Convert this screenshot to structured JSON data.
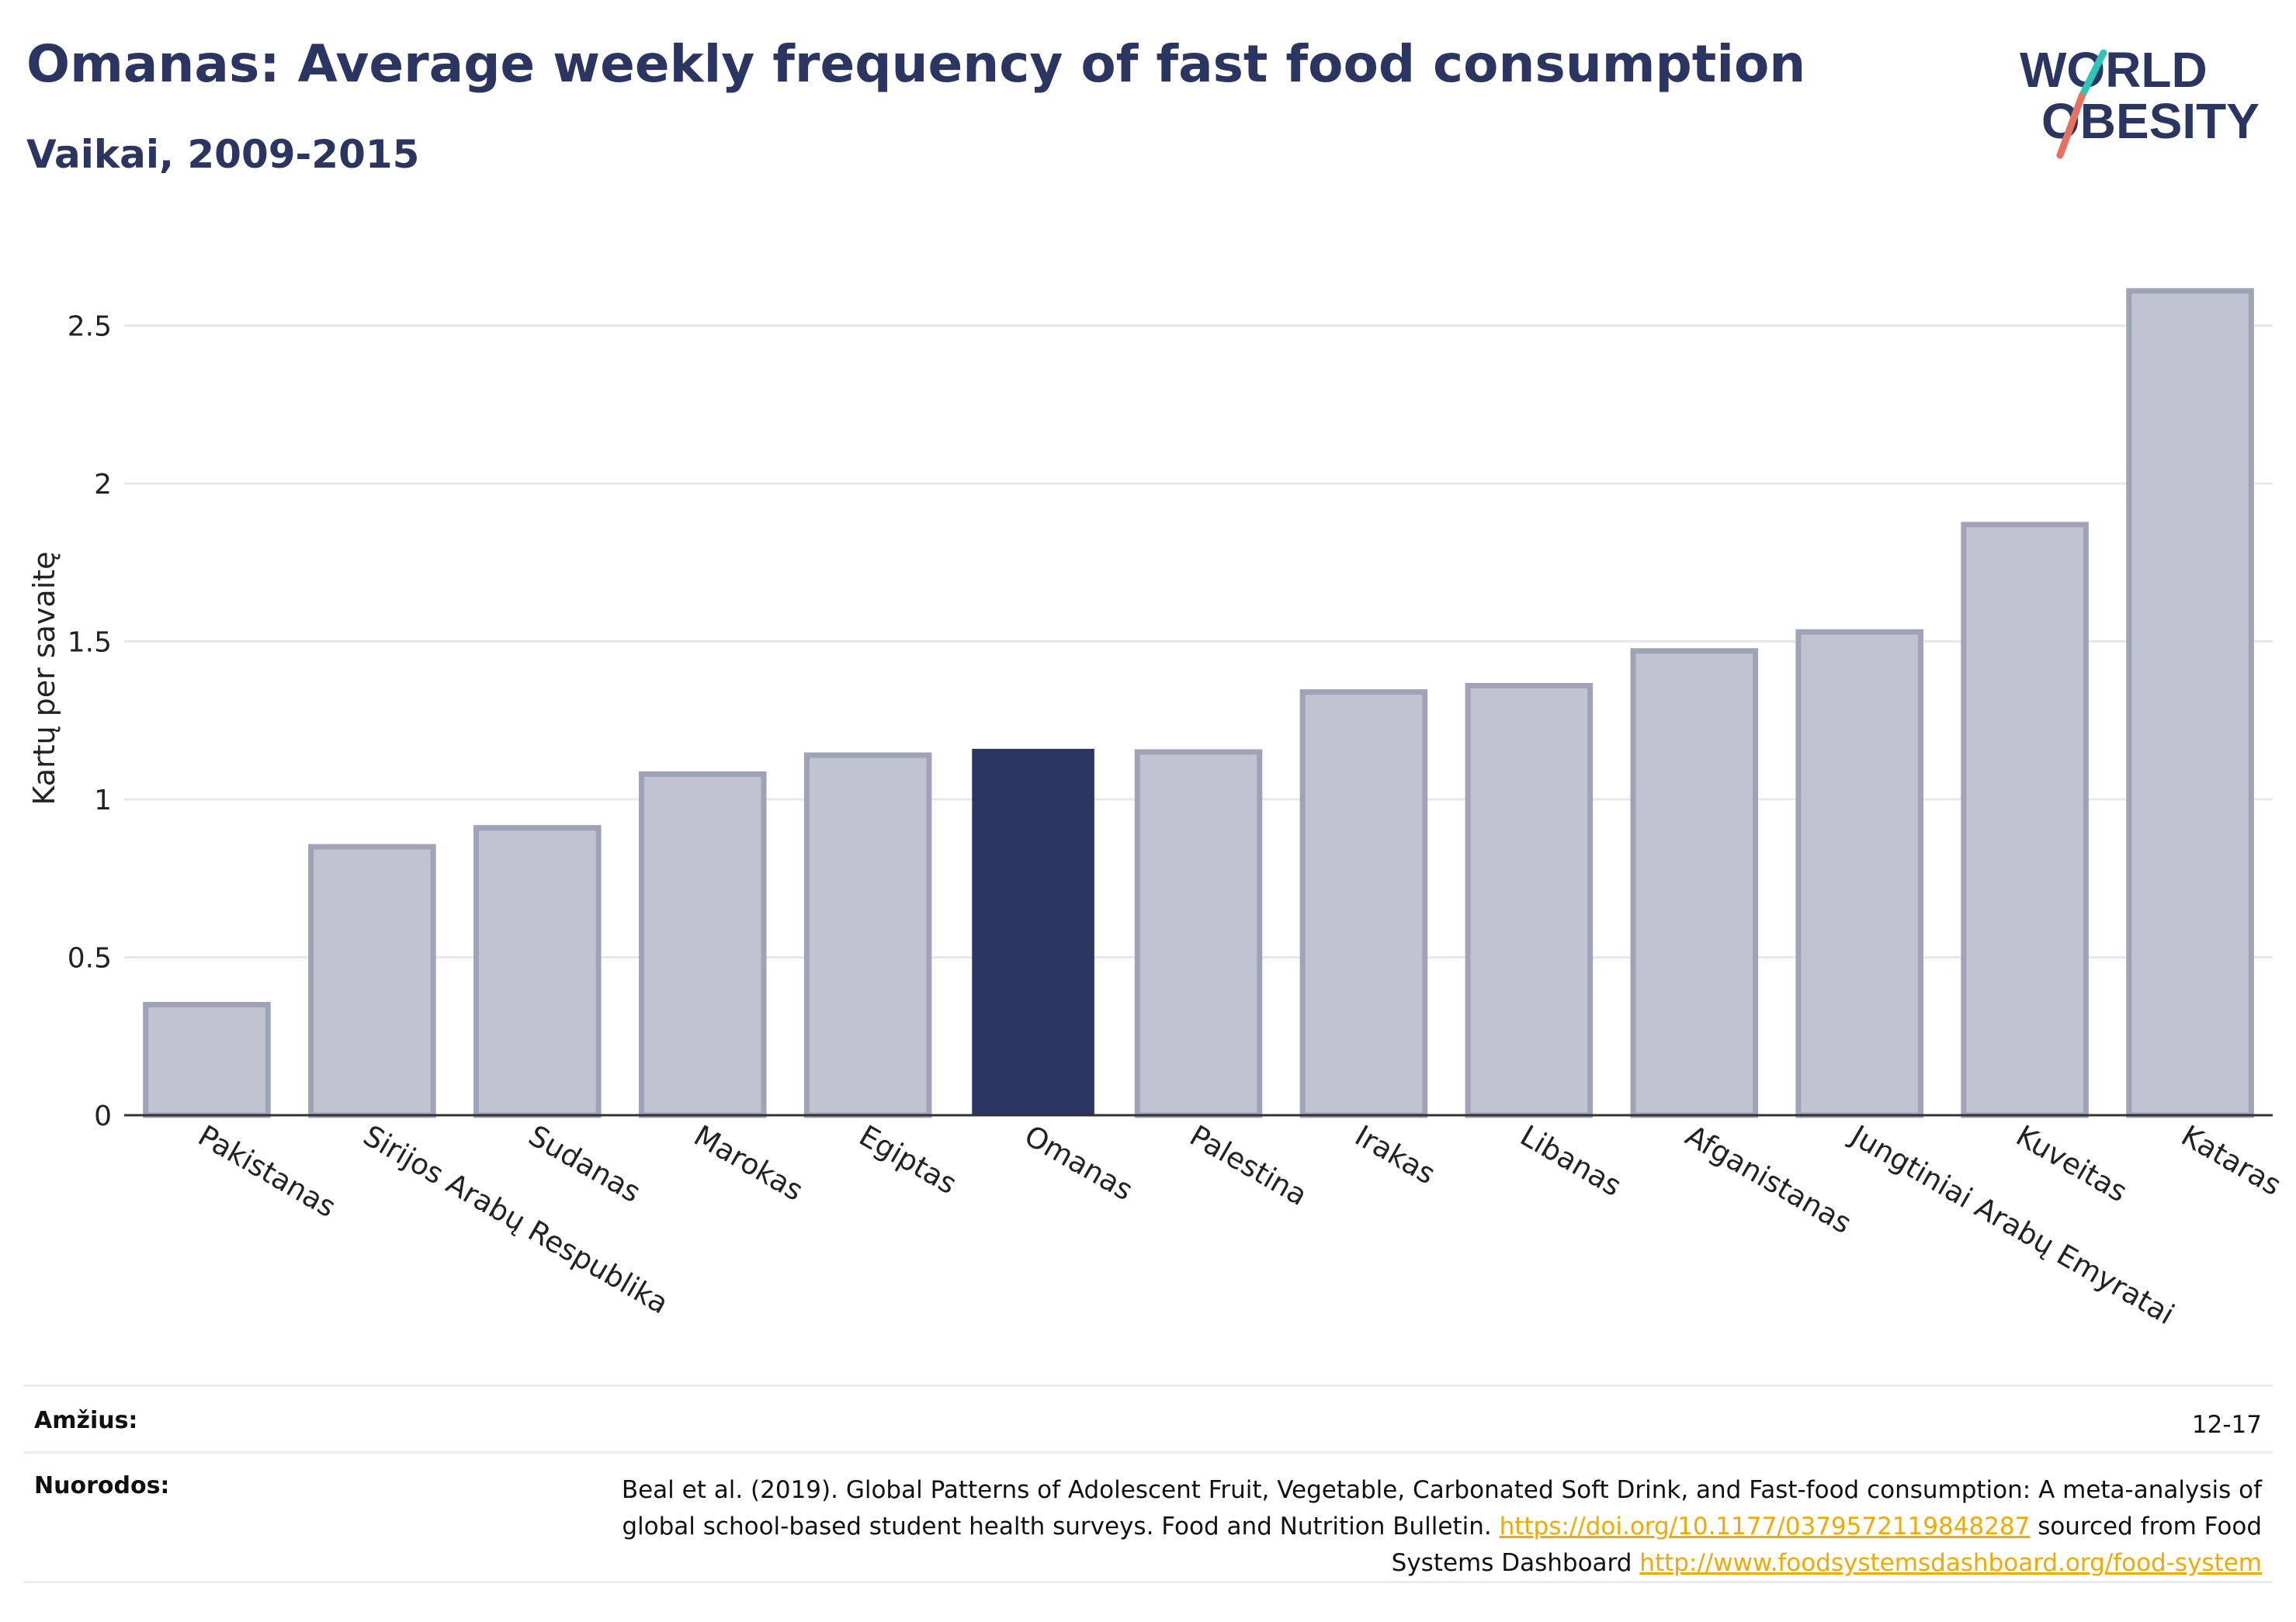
{
  "header": {
    "title": "Omanas: Average weekly frequency of fast food consumption",
    "subtitle": "Vaikai, 2009-2015"
  },
  "logo": {
    "line1": "WORLD",
    "line2": "OBESITY",
    "text_color": "#2b3561",
    "slash_colors": [
      "#2ec4b6",
      "#e8705f"
    ]
  },
  "chart_data": {
    "type": "bar",
    "title": "Omanas: Average weekly frequency of fast food consumption",
    "subtitle": "Vaikai, 2009-2015",
    "xlabel": "",
    "ylabel": "Kartų per savaitę",
    "categories": [
      "Pakistanas",
      "Sirijos Arabų Respublika",
      "Sudanas",
      "Marokas",
      "Egiptas",
      "Omanas",
      "Palestina",
      "Irakas",
      "Libanas",
      "Afganistanas",
      "Jungtiniai Arabų Emyratai",
      "Kuveitas",
      "Kataras"
    ],
    "values": [
      0.35,
      0.85,
      0.91,
      1.08,
      1.14,
      1.16,
      1.15,
      1.34,
      1.36,
      1.47,
      1.53,
      1.87,
      2.61
    ],
    "highlight": "Omanas",
    "ylim": [
      0,
      2.72
    ],
    "yticks": [
      0,
      0.5,
      1,
      1.5,
      2,
      2.5
    ],
    "ytick_labels": [
      "0",
      "0.5",
      "1",
      "1.5",
      "2",
      "2.5"
    ],
    "grid": true,
    "colors": {
      "bar": "#c0c3d0",
      "bar_edge": "#9ea3b8",
      "highlight": "#2b3561",
      "grid": "#e6e8f0",
      "axis": "#333333"
    }
  },
  "footer": {
    "age_label": "Amžius:",
    "age_value": "12-17",
    "ref_label": "Nuorodos:",
    "ref_text_1": "Beal et al. (2019). Global Patterns of Adolescent Fruit, Vegetable, Carbonated Soft Drink, and Fast-food consumption: A meta-analysis of global school-based student health surveys. Food and Nutrition Bulletin.",
    "ref_link_1": "https://doi.org/10.1177/0379572119848287",
    "ref_text_2": "sourced from Food Systems Dashboard",
    "ref_link_2": "http://www.foodsystemsdashboard.org/food-system"
  }
}
